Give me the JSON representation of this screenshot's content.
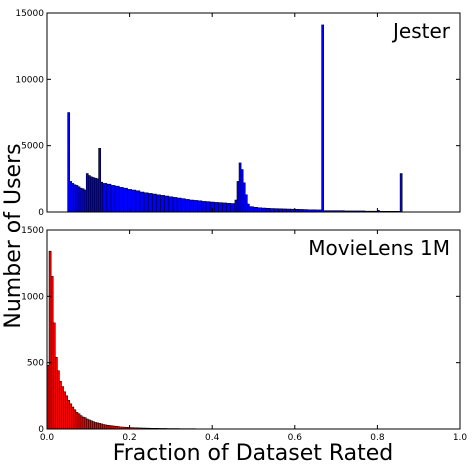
{
  "chart_data": [
    {
      "type": "bar",
      "title": "Jester",
      "xlabel": "Fraction of Dataset Rated",
      "ylabel": "Number of Users",
      "xlim": [
        0.0,
        1.0
      ],
      "ylim": [
        0,
        15000
      ],
      "yticks": [
        0,
        5000,
        10000,
        15000
      ],
      "grid": false,
      "color": "#0000ff",
      "bins": [
        {
          "x0": 0.05,
          "x1": 0.055,
          "y": 7500
        },
        {
          "x0": 0.055,
          "x1": 0.06,
          "y": 2300
        },
        {
          "x0": 0.06,
          "x1": 0.065,
          "y": 2150
        },
        {
          "x0": 0.065,
          "x1": 0.07,
          "y": 2050
        },
        {
          "x0": 0.07,
          "x1": 0.075,
          "y": 2000
        },
        {
          "x0": 0.075,
          "x1": 0.08,
          "y": 1900
        },
        {
          "x0": 0.08,
          "x1": 0.085,
          "y": 1800
        },
        {
          "x0": 0.085,
          "x1": 0.09,
          "y": 1750
        },
        {
          "x0": 0.09,
          "x1": 0.095,
          "y": 1650
        },
        {
          "x0": 0.095,
          "x1": 0.1,
          "y": 2900
        },
        {
          "x0": 0.1,
          "x1": 0.105,
          "y": 2750
        },
        {
          "x0": 0.105,
          "x1": 0.11,
          "y": 2650
        },
        {
          "x0": 0.11,
          "x1": 0.115,
          "y": 2600
        },
        {
          "x0": 0.115,
          "x1": 0.12,
          "y": 2550
        },
        {
          "x0": 0.12,
          "x1": 0.125,
          "y": 2500
        },
        {
          "x0": 0.125,
          "x1": 0.13,
          "y": 4800
        },
        {
          "x0": 0.13,
          "x1": 0.135,
          "y": 2250
        },
        {
          "x0": 0.135,
          "x1": 0.145,
          "y": 2150
        },
        {
          "x0": 0.145,
          "x1": 0.155,
          "y": 2100
        },
        {
          "x0": 0.155,
          "x1": 0.165,
          "y": 2000
        },
        {
          "x0": 0.165,
          "x1": 0.175,
          "y": 1950
        },
        {
          "x0": 0.175,
          "x1": 0.185,
          "y": 1850
        },
        {
          "x0": 0.185,
          "x1": 0.195,
          "y": 1800
        },
        {
          "x0": 0.195,
          "x1": 0.205,
          "y": 1700
        },
        {
          "x0": 0.205,
          "x1": 0.215,
          "y": 1650
        },
        {
          "x0": 0.215,
          "x1": 0.225,
          "y": 1600
        },
        {
          "x0": 0.225,
          "x1": 0.235,
          "y": 1500
        },
        {
          "x0": 0.235,
          "x1": 0.245,
          "y": 1450
        },
        {
          "x0": 0.245,
          "x1": 0.255,
          "y": 1400
        },
        {
          "x0": 0.255,
          "x1": 0.265,
          "y": 1350
        },
        {
          "x0": 0.265,
          "x1": 0.275,
          "y": 1300
        },
        {
          "x0": 0.275,
          "x1": 0.285,
          "y": 1250
        },
        {
          "x0": 0.285,
          "x1": 0.295,
          "y": 1200
        },
        {
          "x0": 0.295,
          "x1": 0.305,
          "y": 1150
        },
        {
          "x0": 0.305,
          "x1": 0.315,
          "y": 1100
        },
        {
          "x0": 0.315,
          "x1": 0.325,
          "y": 1050
        },
        {
          "x0": 0.325,
          "x1": 0.335,
          "y": 1000
        },
        {
          "x0": 0.335,
          "x1": 0.345,
          "y": 950
        },
        {
          "x0": 0.345,
          "x1": 0.355,
          "y": 900
        },
        {
          "x0": 0.355,
          "x1": 0.365,
          "y": 870
        },
        {
          "x0": 0.365,
          "x1": 0.375,
          "y": 840
        },
        {
          "x0": 0.375,
          "x1": 0.385,
          "y": 800
        },
        {
          "x0": 0.385,
          "x1": 0.395,
          "y": 780
        },
        {
          "x0": 0.395,
          "x1": 0.405,
          "y": 750
        },
        {
          "x0": 0.405,
          "x1": 0.415,
          "y": 720
        },
        {
          "x0": 0.415,
          "x1": 0.425,
          "y": 700
        },
        {
          "x0": 0.425,
          "x1": 0.435,
          "y": 680
        },
        {
          "x0": 0.435,
          "x1": 0.445,
          "y": 660
        },
        {
          "x0": 0.445,
          "x1": 0.455,
          "y": 640
        },
        {
          "x0": 0.455,
          "x1": 0.46,
          "y": 900
        },
        {
          "x0": 0.46,
          "x1": 0.465,
          "y": 2300
        },
        {
          "x0": 0.465,
          "x1": 0.47,
          "y": 3700
        },
        {
          "x0": 0.47,
          "x1": 0.475,
          "y": 3200
        },
        {
          "x0": 0.475,
          "x1": 0.48,
          "y": 2200
        },
        {
          "x0": 0.48,
          "x1": 0.485,
          "y": 1300
        },
        {
          "x0": 0.485,
          "x1": 0.49,
          "y": 600
        },
        {
          "x0": 0.49,
          "x1": 0.5,
          "y": 400
        },
        {
          "x0": 0.5,
          "x1": 0.51,
          "y": 350
        },
        {
          "x0": 0.51,
          "x1": 0.52,
          "y": 320
        },
        {
          "x0": 0.52,
          "x1": 0.53,
          "y": 300
        },
        {
          "x0": 0.53,
          "x1": 0.54,
          "y": 280
        },
        {
          "x0": 0.54,
          "x1": 0.55,
          "y": 260
        },
        {
          "x0": 0.55,
          "x1": 0.56,
          "y": 250
        },
        {
          "x0": 0.56,
          "x1": 0.57,
          "y": 240
        },
        {
          "x0": 0.57,
          "x1": 0.58,
          "y": 230
        },
        {
          "x0": 0.58,
          "x1": 0.59,
          "y": 220
        },
        {
          "x0": 0.59,
          "x1": 0.6,
          "y": 210
        },
        {
          "x0": 0.6,
          "x1": 0.61,
          "y": 200
        },
        {
          "x0": 0.61,
          "x1": 0.62,
          "y": 190
        },
        {
          "x0": 0.62,
          "x1": 0.63,
          "y": 180
        },
        {
          "x0": 0.63,
          "x1": 0.64,
          "y": 170
        },
        {
          "x0": 0.64,
          "x1": 0.65,
          "y": 170
        },
        {
          "x0": 0.65,
          "x1": 0.66,
          "y": 160
        },
        {
          "x0": 0.66,
          "x1": 0.665,
          "y": 160
        },
        {
          "x0": 0.665,
          "x1": 0.67,
          "y": 14100
        },
        {
          "x0": 0.67,
          "x1": 0.72,
          "y": 100
        },
        {
          "x0": 0.72,
          "x1": 0.77,
          "y": 80
        },
        {
          "x0": 0.77,
          "x1": 0.8,
          "y": 60
        },
        {
          "x0": 0.8,
          "x1": 0.805,
          "y": 120
        },
        {
          "x0": 0.805,
          "x1": 0.855,
          "y": 50
        },
        {
          "x0": 0.855,
          "x1": 0.86,
          "y": 2900
        }
      ]
    },
    {
      "type": "bar",
      "title": "MovieLens 1M",
      "xlabel": "Fraction of Dataset Rated",
      "ylabel": "Number of Users",
      "xlim": [
        0.0,
        1.0
      ],
      "xticks": [
        0.0,
        0.2,
        0.4,
        0.6,
        0.8,
        1.0
      ],
      "xtick_labels": [
        "0.0",
        "0.2",
        "0.4",
        "0.6",
        "0.8",
        "1.0"
      ],
      "ylim": [
        0,
        1500
      ],
      "yticks": [
        0,
        500,
        1000,
        1500
      ],
      "grid": false,
      "color": "#ff0000",
      "bins": [
        {
          "x0": 0.0,
          "x1": 0.005,
          "y": 480
        },
        {
          "x0": 0.005,
          "x1": 0.01,
          "y": 1340
        },
        {
          "x0": 0.01,
          "x1": 0.015,
          "y": 1150
        },
        {
          "x0": 0.015,
          "x1": 0.02,
          "y": 800
        },
        {
          "x0": 0.02,
          "x1": 0.025,
          "y": 540
        },
        {
          "x0": 0.025,
          "x1": 0.03,
          "y": 440
        },
        {
          "x0": 0.03,
          "x1": 0.035,
          "y": 360
        },
        {
          "x0": 0.035,
          "x1": 0.04,
          "y": 320
        },
        {
          "x0": 0.04,
          "x1": 0.045,
          "y": 280
        },
        {
          "x0": 0.045,
          "x1": 0.05,
          "y": 250
        },
        {
          "x0": 0.05,
          "x1": 0.055,
          "y": 215
        },
        {
          "x0": 0.055,
          "x1": 0.06,
          "y": 190
        },
        {
          "x0": 0.06,
          "x1": 0.065,
          "y": 165
        },
        {
          "x0": 0.065,
          "x1": 0.07,
          "y": 145
        },
        {
          "x0": 0.07,
          "x1": 0.075,
          "y": 125
        },
        {
          "x0": 0.075,
          "x1": 0.08,
          "y": 115
        },
        {
          "x0": 0.08,
          "x1": 0.085,
          "y": 100
        },
        {
          "x0": 0.085,
          "x1": 0.09,
          "y": 90
        },
        {
          "x0": 0.09,
          "x1": 0.095,
          "y": 85
        },
        {
          "x0": 0.095,
          "x1": 0.1,
          "y": 75
        },
        {
          "x0": 0.1,
          "x1": 0.105,
          "y": 68
        },
        {
          "x0": 0.105,
          "x1": 0.11,
          "y": 62
        },
        {
          "x0": 0.11,
          "x1": 0.115,
          "y": 55
        },
        {
          "x0": 0.115,
          "x1": 0.12,
          "y": 50
        },
        {
          "x0": 0.12,
          "x1": 0.125,
          "y": 46
        },
        {
          "x0": 0.125,
          "x1": 0.13,
          "y": 42
        },
        {
          "x0": 0.13,
          "x1": 0.135,
          "y": 38
        },
        {
          "x0": 0.135,
          "x1": 0.14,
          "y": 34
        },
        {
          "x0": 0.14,
          "x1": 0.145,
          "y": 31
        },
        {
          "x0": 0.145,
          "x1": 0.15,
          "y": 28
        },
        {
          "x0": 0.15,
          "x1": 0.155,
          "y": 26
        },
        {
          "x0": 0.155,
          "x1": 0.16,
          "y": 24
        },
        {
          "x0": 0.16,
          "x1": 0.165,
          "y": 22
        },
        {
          "x0": 0.165,
          "x1": 0.17,
          "y": 20
        },
        {
          "x0": 0.17,
          "x1": 0.175,
          "y": 18
        },
        {
          "x0": 0.175,
          "x1": 0.18,
          "y": 16
        },
        {
          "x0": 0.18,
          "x1": 0.185,
          "y": 15
        },
        {
          "x0": 0.185,
          "x1": 0.19,
          "y": 14
        },
        {
          "x0": 0.19,
          "x1": 0.195,
          "y": 13
        },
        {
          "x0": 0.195,
          "x1": 0.2,
          "y": 12
        },
        {
          "x0": 0.2,
          "x1": 0.21,
          "y": 10
        },
        {
          "x0": 0.21,
          "x1": 0.22,
          "y": 9
        },
        {
          "x0": 0.22,
          "x1": 0.23,
          "y": 8
        },
        {
          "x0": 0.23,
          "x1": 0.24,
          "y": 7
        },
        {
          "x0": 0.24,
          "x1": 0.25,
          "y": 6
        },
        {
          "x0": 0.25,
          "x1": 0.26,
          "y": 5
        },
        {
          "x0": 0.26,
          "x1": 0.27,
          "y": 5
        },
        {
          "x0": 0.27,
          "x1": 0.28,
          "y": 4
        },
        {
          "x0": 0.28,
          "x1": 0.29,
          "y": 4
        },
        {
          "x0": 0.29,
          "x1": 0.3,
          "y": 3
        },
        {
          "x0": 0.3,
          "x1": 0.32,
          "y": 3
        },
        {
          "x0": 0.32,
          "x1": 0.34,
          "y": 2
        },
        {
          "x0": 0.34,
          "x1": 0.36,
          "y": 2
        },
        {
          "x0": 0.36,
          "x1": 0.4,
          "y": 1
        },
        {
          "x0": 0.4,
          "x1": 0.44,
          "y": 1
        }
      ]
    }
  ]
}
